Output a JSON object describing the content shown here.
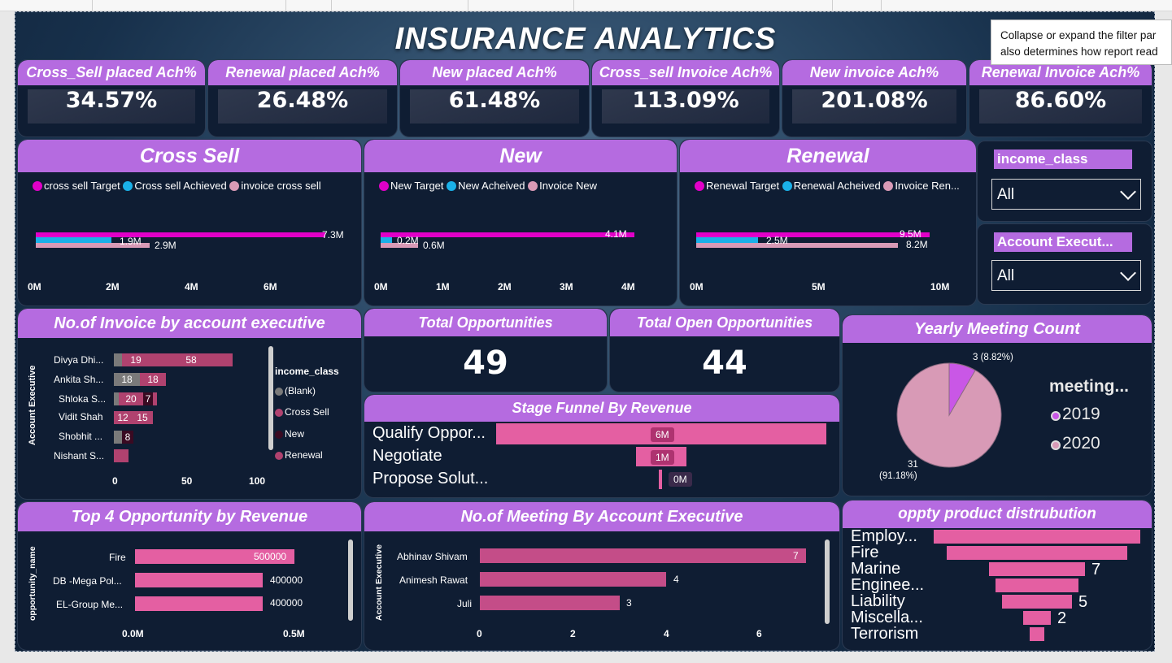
{
  "title": "INSURANCE ANALYTICS",
  "tooltip": {
    "line1": "Collapse or expand the filter par",
    "line2": "also determines how report read"
  },
  "kpis": [
    {
      "label": "Cross_Sell placed Ach%",
      "value": "34.57%"
    },
    {
      "label": "Renewal placed Ach%",
      "value": "26.48%"
    },
    {
      "label": "New placed Ach%",
      "value": "61.48%"
    },
    {
      "label": "Cross_sell Invoice Ach%",
      "value": "113.09%"
    },
    {
      "label": "New invoice Ach%",
      "value": "201.08%"
    },
    {
      "label": "Renewal Invoice Ach%",
      "value": "86.60%"
    }
  ],
  "colors": {
    "target": "#e100c8",
    "achieved": "#1ab0e8",
    "invoice": "#d89ab6",
    "header": "#b56be0",
    "pink": "#e45fa2",
    "pie2019": "#c957e6",
    "pie2020": "#d89ab6"
  },
  "cross_sell": {
    "title": "Cross Sell",
    "legend": [
      "cross sell Target",
      "Cross sell Achieved",
      "invoice cross sell"
    ],
    "labels": {
      "target": "7.3M",
      "achieved": "1.9M",
      "invoice": "2.9M"
    },
    "ticks": [
      "0M",
      "2M",
      "4M",
      "6M"
    ]
  },
  "new": {
    "title": "New",
    "legend": [
      "New Target",
      "New Acheived",
      "Invoice New"
    ],
    "labels": {
      "target": "4.1M",
      "achieved": "0.2M",
      "invoice": "0.6M"
    },
    "ticks": [
      "0M",
      "1M",
      "2M",
      "3M",
      "4M"
    ]
  },
  "renewal": {
    "title": "Renewal",
    "legend": [
      "Renewal Target",
      "Renewal Acheived",
      "Invoice Ren..."
    ],
    "labels": {
      "target": "9.5M",
      "achieved": "2.5M",
      "invoice": "8.2M"
    },
    "ticks": [
      "0M",
      "5M",
      "10M"
    ]
  },
  "slicers": [
    {
      "label": "income_class",
      "value": "All"
    },
    {
      "label": "Account Execut...",
      "value": "All"
    }
  ],
  "invoice_chart": {
    "title": "No.of Invoice by account executive",
    "ylabel": "Account Executive",
    "legend_title": "income_class",
    "legend": [
      "(Blank)",
      "Cross Sell",
      "New",
      "Renewal"
    ],
    "ticks": [
      "0",
      "50",
      "100"
    ],
    "rows": [
      {
        "name": "Divya Dhi...",
        "a": "19",
        "b": "58"
      },
      {
        "name": "Ankita Sh...",
        "a": "18",
        "b": "18"
      },
      {
        "name": "Shloka S...",
        "a": "20",
        "b": "7"
      },
      {
        "name": "Vidit Shah",
        "a": "12",
        "b": "15"
      },
      {
        "name": "Shobhit ...",
        "a": "",
        "b": "8"
      },
      {
        "name": "Nishant S...",
        "a": "",
        "b": ""
      }
    ]
  },
  "total_opps": {
    "label": "Total Opportunities",
    "value": "49"
  },
  "open_opps": {
    "label": "Total Open Opportunities",
    "value": "44"
  },
  "meeting_pie": {
    "title": "Yearly Meeting Count",
    "legend_title": "meeting...",
    "legend": [
      "2019",
      "2020"
    ],
    "label_2019": "3 (8.82%)",
    "label_2020_a": "31",
    "label_2020_b": "(91.18%)"
  },
  "funnel": {
    "title": "Stage Funnel By Revenue",
    "rows": [
      {
        "name": "Qualify Oppor...",
        "value": "6M"
      },
      {
        "name": "Negotiate",
        "value": "1M"
      },
      {
        "name": "Propose Solut...",
        "value": "0M"
      }
    ]
  },
  "top4": {
    "title": "Top 4 Opportunity by Revenue",
    "ylabel": "opportunity_name",
    "rows": [
      {
        "name": "Fire",
        "value": "500000"
      },
      {
        "name": "DB -Mega Pol...",
        "value": "400000"
      },
      {
        "name": "EL-Group Me...",
        "value": "400000"
      }
    ],
    "ticks": [
      "0.0M",
      "0.5M"
    ]
  },
  "meetings_ae": {
    "title": "No.of Meeting By Account Executive",
    "ylabel": "Account Executive",
    "rows": [
      {
        "name": "Abhinav Shivam",
        "value": "7"
      },
      {
        "name": "Animesh Rawat",
        "value": "4"
      },
      {
        "name": "Juli",
        "value": "3"
      }
    ],
    "ticks": [
      "0",
      "2",
      "4",
      "6"
    ]
  },
  "product": {
    "title": "oppty product distrubution",
    "rows": [
      {
        "name": "Employ...",
        "value": ""
      },
      {
        "name": "Fire",
        "value": ""
      },
      {
        "name": "Marine",
        "value": "7"
      },
      {
        "name": "Enginee...",
        "value": ""
      },
      {
        "name": "Liability",
        "value": "5"
      },
      {
        "name": "Miscella...",
        "value": "2"
      },
      {
        "name": "Terrorism",
        "value": ""
      }
    ]
  }
}
